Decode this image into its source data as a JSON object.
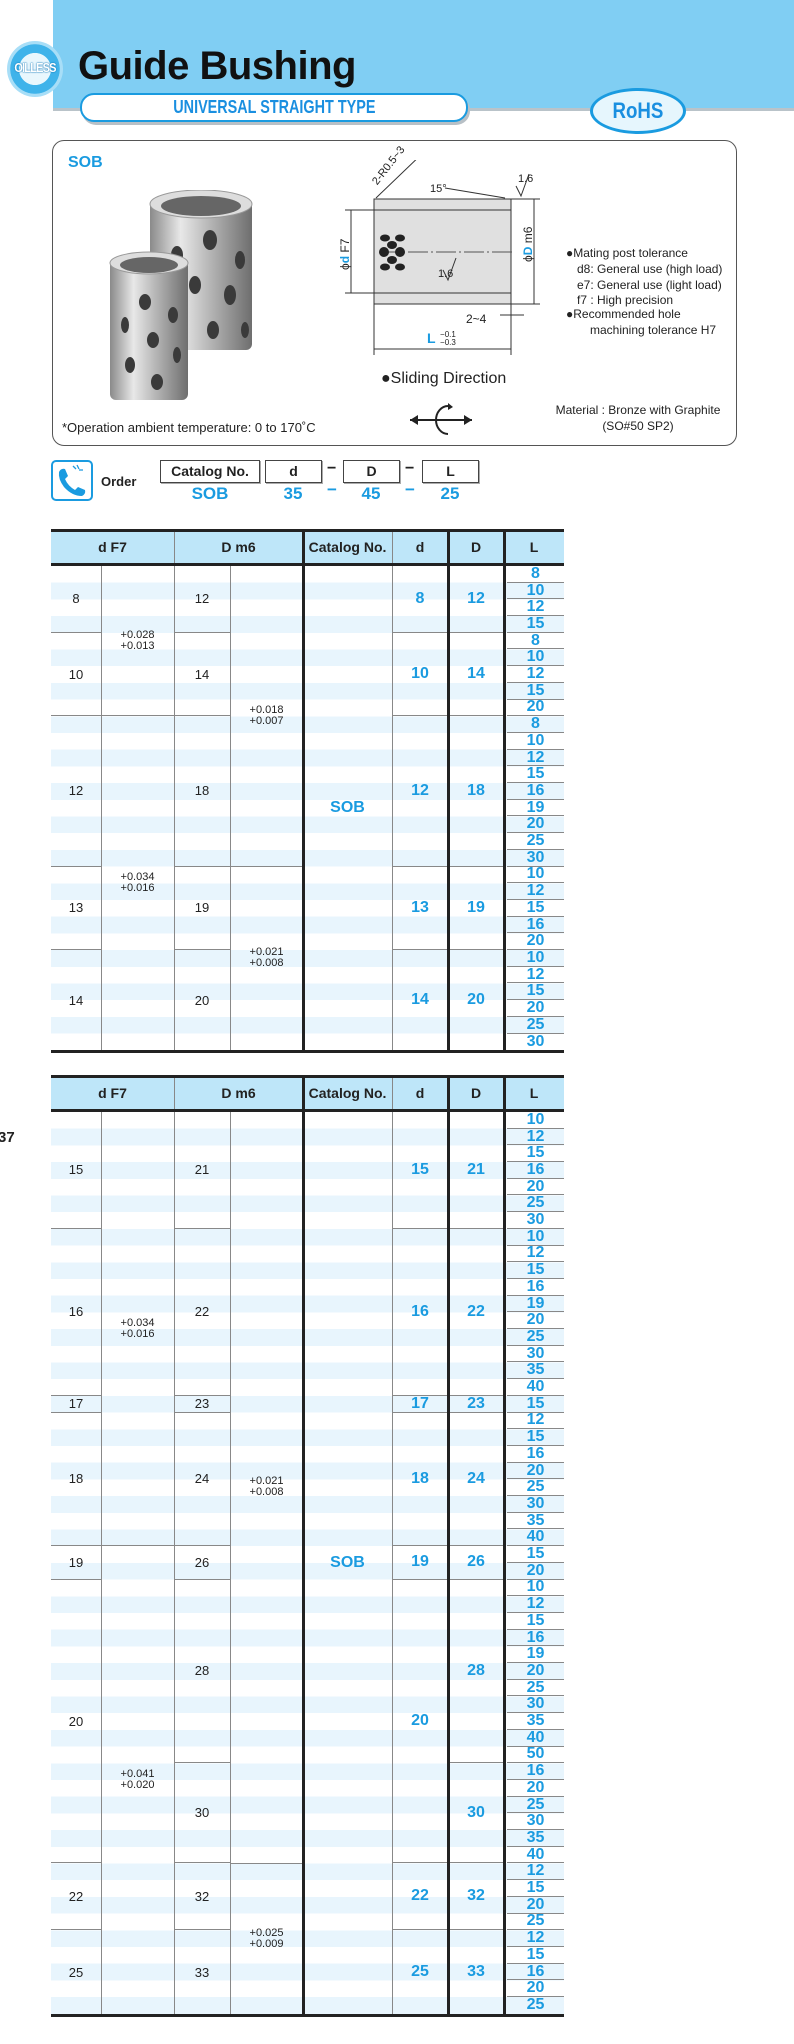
{
  "header": {
    "logo_text": "OILLESS",
    "title": "Guide Bushing",
    "subtitle": "UNIVERSAL STRAIGHT TYPE",
    "badge": "RoHS",
    "colors": {
      "band": "#80cef3",
      "accent": "#1a9be0"
    }
  },
  "product": {
    "code": "SOB",
    "drawing": {
      "radius": "2-R0.5~3",
      "angle": "15°",
      "roughness_top": "1.6",
      "roughness_inner": "1.6",
      "d_label": "d",
      "d_tol": "F7",
      "D_label": "D",
      "D_tol": "m6",
      "chamfer": "2~4",
      "L_label": "L",
      "L_upper": "−0.1",
      "L_lower": "−0.3",
      "phi": "ϕ"
    },
    "notes": [
      "●Mating post tolerance",
      "d8: General use (high load)",
      "e7: General use (light load)",
      "f7 : High precision",
      "●Recommended hole",
      "machining tolerance   H7"
    ],
    "sliding_direction": "●Sliding Direction",
    "material_line1": "Material : Bronze with Graphite",
    "material_line2": "(SO#50 SP2)",
    "temperature_note": "*Operation ambient temperature: 0 to 170˚C"
  },
  "order": {
    "label": "Order",
    "fields": [
      "Catalog No.",
      "d",
      "D",
      "L"
    ],
    "separator": "−",
    "example": [
      "SOB",
      "35",
      "45",
      "25"
    ]
  },
  "page_marker": "37",
  "columns": [
    "d   F7",
    "D   m6",
    "Catalog No.",
    "d",
    "D",
    "L"
  ],
  "tables": [
    {
      "catalog": "SOB",
      "d_groups": [
        {
          "v": "8",
          "n": 4
        },
        {
          "v": "10",
          "n": 5
        },
        {
          "v": "12",
          "n": 9
        },
        {
          "v": "13",
          "n": 5
        },
        {
          "v": "14",
          "n": 6
        }
      ],
      "D_groups": [
        {
          "v": "12",
          "n": 4
        },
        {
          "v": "14",
          "n": 5
        },
        {
          "v": "18",
          "n": 9
        },
        {
          "v": "19",
          "n": 5
        },
        {
          "v": "20",
          "n": 6
        }
      ],
      "d_tol": [
        {
          "upper": "+0.028",
          "lower": "+0.013",
          "n": 9
        },
        {
          "upper": "+0.034",
          "lower": "+0.016",
          "n": 20
        }
      ],
      "D_tol": [
        {
          "upper": "+0.018",
          "lower": "+0.007",
          "n": 18
        },
        {
          "upper": "+0.021",
          "lower": "+0.008",
          "n": 11
        }
      ],
      "L": [
        "8",
        "10",
        "12",
        "15",
        "8",
        "10",
        "12",
        "15",
        "20",
        "8",
        "10",
        "12",
        "15",
        "16",
        "19",
        "20",
        "25",
        "30",
        "10",
        "12",
        "15",
        "16",
        "20",
        "10",
        "12",
        "15",
        "20",
        "25",
        "30"
      ]
    },
    {
      "catalog": "SOB",
      "d_groups": [
        {
          "v": "15",
          "n": 7
        },
        {
          "v": "16",
          "n": 10
        },
        {
          "v": "17",
          "n": 1
        },
        {
          "v": "18",
          "n": 8
        },
        {
          "v": "19",
          "n": 2
        },
        {
          "v": "20",
          "n": 17
        },
        {
          "v": "22",
          "n": 4
        },
        {
          "v": "25",
          "n": 5
        }
      ],
      "D_groups": [
        {
          "v": "21",
          "n": 7
        },
        {
          "v": "22",
          "n": 10
        },
        {
          "v": "23",
          "n": 1
        },
        {
          "v": "24",
          "n": 8
        },
        {
          "v": "26",
          "n": 2
        },
        {
          "v": "28",
          "n": 11
        },
        {
          "v": "30",
          "n": 6
        },
        {
          "v": "32",
          "n": 4
        },
        {
          "v": "33",
          "n": 5
        }
      ],
      "d_tol": [
        {
          "upper": "+0.034",
          "lower": "+0.016",
          "n": 26
        },
        {
          "upper": "+0.041",
          "lower": "+0.020",
          "n": 28
        }
      ],
      "D_tol": [
        {
          "upper": "+0.021",
          "lower": "+0.008",
          "n": 45
        },
        {
          "upper": "+0.025",
          "lower": "+0.009",
          "n": 9
        }
      ],
      "L": [
        "10",
        "12",
        "15",
        "16",
        "20",
        "25",
        "30",
        "10",
        "12",
        "15",
        "16",
        "19",
        "20",
        "25",
        "30",
        "35",
        "40",
        "15",
        "12",
        "15",
        "16",
        "20",
        "25",
        "30",
        "35",
        "40",
        "15",
        "20",
        "10",
        "12",
        "15",
        "16",
        "19",
        "20",
        "25",
        "30",
        "35",
        "40",
        "50",
        "16",
        "20",
        "25",
        "30",
        "35",
        "40",
        "12",
        "15",
        "20",
        "25",
        "12",
        "15",
        "16",
        "20",
        "25"
      ]
    }
  ]
}
